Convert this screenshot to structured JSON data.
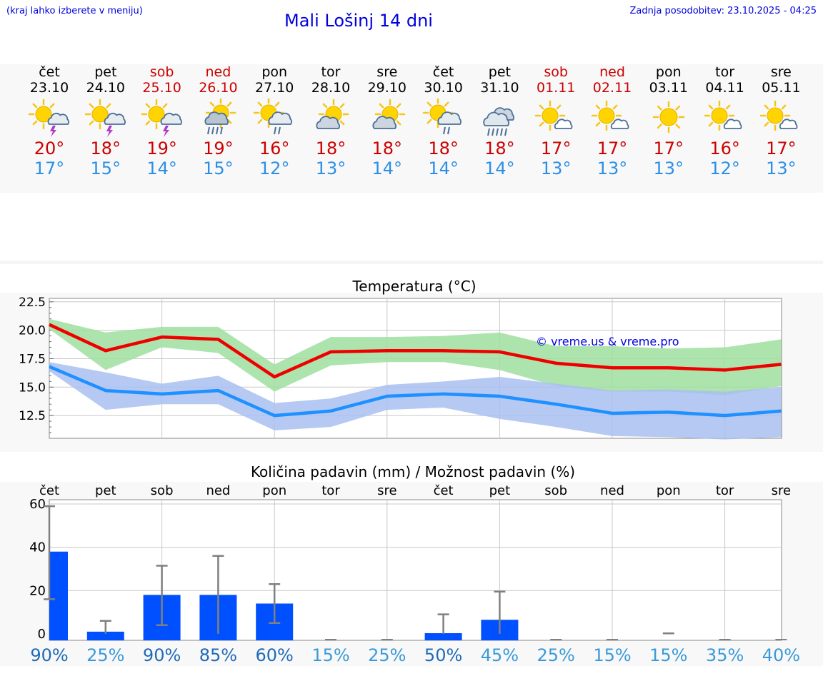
{
  "header": {
    "menu_hint": "(kraj lahko izberete v meniju)",
    "title": "Mali Lošinj 14 dni",
    "updated": "Zadnja posodobitev: 23.10.2025 - 04:25"
  },
  "days": [
    {
      "name": "čet",
      "date": "23.10",
      "weekend": false,
      "icon": "sun-cloud-thunder-icon",
      "tmax": "20°",
      "tmin": "17°"
    },
    {
      "name": "pet",
      "date": "24.10",
      "weekend": false,
      "icon": "sun-cloud-thunder-icon",
      "tmax": "18°",
      "tmin": "15°"
    },
    {
      "name": "sob",
      "date": "25.10",
      "weekend": true,
      "icon": "sun-cloud-thunder-icon",
      "tmax": "19°",
      "tmin": "14°"
    },
    {
      "name": "ned",
      "date": "26.10",
      "weekend": true,
      "icon": "sun-cloud-rain-heavy-icon",
      "tmax": "19°",
      "tmin": "15°"
    },
    {
      "name": "pon",
      "date": "27.10",
      "weekend": false,
      "icon": "sun-cloud-rain-icon",
      "tmax": "16°",
      "tmin": "12°"
    },
    {
      "name": "tor",
      "date": "28.10",
      "weekend": false,
      "icon": "sun-cloud-icon",
      "tmax": "18°",
      "tmin": "13°"
    },
    {
      "name": "sre",
      "date": "29.10",
      "weekend": false,
      "icon": "sun-cloud-icon",
      "tmax": "18°",
      "tmin": "14°"
    },
    {
      "name": "čet",
      "date": "30.10",
      "weekend": false,
      "icon": "sun-cloud-rain-icon",
      "tmax": "18°",
      "tmin": "14°"
    },
    {
      "name": "pet",
      "date": "31.10",
      "weekend": false,
      "icon": "cloud-rain-heavy-icon",
      "tmax": "18°",
      "tmin": "14°"
    },
    {
      "name": "sob",
      "date": "01.11",
      "weekend": true,
      "icon": "sun-small-cloud-icon",
      "tmax": "17°",
      "tmin": "13°"
    },
    {
      "name": "ned",
      "date": "02.11",
      "weekend": true,
      "icon": "sun-small-cloud-icon",
      "tmax": "17°",
      "tmin": "13°"
    },
    {
      "name": "pon",
      "date": "03.11",
      "weekend": false,
      "icon": "sun-icon",
      "tmax": "17°",
      "tmin": "13°"
    },
    {
      "name": "tor",
      "date": "04.11",
      "weekend": false,
      "icon": "sun-small-cloud-icon",
      "tmax": "16°",
      "tmin": "12°"
    },
    {
      "name": "sre",
      "date": "05.11",
      "weekend": false,
      "icon": "sun-small-cloud-icon",
      "tmax": "17°",
      "tmin": "13°"
    }
  ],
  "colors": {
    "weekend": "#cc0000",
    "tmax": "#cc0000",
    "tmin": "#2b8fe6",
    "line_max": "#ee0000",
    "band_max": "#9fdf9f",
    "line_min": "#1e90ff",
    "band_min": "#a8c0f0",
    "bar": "#0050ff",
    "error": "#808080",
    "prob_high": "#1f6bb8",
    "prob_low": "#3a9ad9",
    "watermark": "#0000dd"
  },
  "chart_data": [
    {
      "type": "line",
      "title": "Temperatura (°C)",
      "x": [
        "23.10",
        "24.10",
        "25.10",
        "26.10",
        "27.10",
        "28.10",
        "29.10",
        "30.10",
        "31.10",
        "01.11",
        "02.11",
        "03.11",
        "04.11",
        "05.11"
      ],
      "ylim": [
        10.5,
        22.8
      ],
      "yticks": [
        "22.5",
        "20.0",
        "17.5",
        "15.0",
        "12.5"
      ],
      "ytick_values": [
        22.5,
        20,
        17.5,
        15,
        12.5
      ],
      "watermark": "© vreme.us & vreme.pro",
      "grid": true,
      "series": [
        {
          "values": [
            20.5,
            18.2,
            19.4,
            19.2,
            15.9,
            18.1,
            18.2,
            18.2,
            18.1,
            17.1,
            16.7,
            16.7,
            16.5,
            17.0
          ],
          "band_low": [
            20.1,
            16.5,
            18.5,
            18.0,
            14.6,
            16.9,
            17.2,
            17.2,
            16.5,
            15.1,
            14.6,
            14.6,
            14.3,
            15.1
          ],
          "band_high": [
            21.0,
            19.8,
            20.3,
            20.3,
            17.0,
            19.4,
            19.4,
            19.5,
            19.8,
            18.6,
            18.6,
            18.4,
            18.5,
            19.2
          ]
        },
        {
          "values": [
            16.8,
            14.7,
            14.4,
            14.7,
            12.5,
            12.9,
            14.2,
            14.4,
            14.2,
            13.5,
            12.7,
            12.8,
            12.5,
            12.9
          ],
          "band_low": [
            16.4,
            13.0,
            13.5,
            13.5,
            11.2,
            11.5,
            13.0,
            13.2,
            12.2,
            11.5,
            10.7,
            10.6,
            10.4,
            10.6
          ],
          "band_high": [
            17.2,
            16.3,
            15.3,
            16.0,
            13.6,
            14.0,
            15.2,
            15.5,
            15.9,
            15.3,
            14.7,
            14.8,
            14.6,
            15.0
          ]
        }
      ]
    },
    {
      "type": "bar",
      "title": "Količina padavin (mm) / Možnost padavin (%)",
      "categories": [
        "čet",
        "pet",
        "sob",
        "ned",
        "pon",
        "tor",
        "sre",
        "čet",
        "pet",
        "sob",
        "ned",
        "pon",
        "tor",
        "sre"
      ],
      "values": [
        38,
        1,
        18,
        18,
        14,
        0,
        0,
        0.3,
        6.5,
        0,
        0,
        0,
        0,
        0
      ],
      "err_low": [
        16,
        0,
        4,
        0,
        5,
        0,
        0,
        0,
        0,
        0,
        0,
        0,
        0,
        0
      ],
      "err_high": [
        59,
        6,
        31.5,
        36,
        23,
        0,
        0,
        9,
        19.5,
        0,
        0,
        0.2,
        0,
        0
      ],
      "ylim": [
        -3,
        62
      ],
      "yticks": [
        "60",
        "40",
        "20",
        "0"
      ],
      "ytick_values": [
        60,
        40,
        20,
        0
      ],
      "probability": [
        "90%",
        "25%",
        "90%",
        "85%",
        "60%",
        "15%",
        "25%",
        "50%",
        "45%",
        "25%",
        "15%",
        "15%",
        "35%",
        "40%"
      ],
      "grid": true
    }
  ]
}
